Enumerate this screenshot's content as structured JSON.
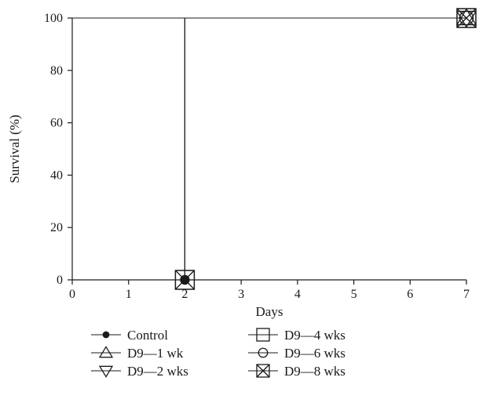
{
  "chart_data": {
    "type": "line",
    "title": "",
    "xlabel": "Days",
    "ylabel": "Survival (%)",
    "xlim": [
      0,
      7
    ],
    "ylim": [
      0,
      100
    ],
    "x_ticks": [
      "0",
      "1",
      "2",
      "3",
      "4",
      "5",
      "6",
      "7"
    ],
    "y_ticks": [
      "0",
      "20",
      "40",
      "60",
      "80",
      "100"
    ],
    "grid": false,
    "legend_position": "bottom",
    "series": [
      {
        "name": "Control",
        "marker": "filled-circle",
        "x": [
          0,
          2
        ],
        "y": [
          100,
          0
        ],
        "markers_at": [
          [
            2,
            0
          ]
        ]
      },
      {
        "name": "D9—1 wk",
        "marker": "triangle-up",
        "x": [
          0,
          7
        ],
        "y": [
          100,
          100
        ],
        "markers_at": [
          [
            7,
            100
          ]
        ]
      },
      {
        "name": "D9—2 wks",
        "marker": "triangle-down",
        "x": [
          0,
          7
        ],
        "y": [
          100,
          100
        ],
        "markers_at": [
          [
            7,
            100
          ]
        ]
      },
      {
        "name": "D9—4 wks",
        "marker": "square",
        "x": [
          0,
          2
        ],
        "y": [
          100,
          0
        ],
        "markers_at": [
          [
            2,
            0
          ],
          [
            7,
            100
          ]
        ]
      },
      {
        "name": "D9—6 wks",
        "marker": "circle",
        "x": [
          0,
          7
        ],
        "y": [
          100,
          100
        ],
        "markers_at": [
          [
            7,
            100
          ]
        ]
      },
      {
        "name": "D9—8 wks",
        "marker": "crossed-square",
        "x": [
          0,
          2
        ],
        "y": [
          100,
          0
        ],
        "markers_at": [
          [
            2,
            0
          ],
          [
            7,
            100
          ]
        ]
      }
    ],
    "colors": {
      "line": "#1a1a1a",
      "background": "#ffffff"
    }
  }
}
